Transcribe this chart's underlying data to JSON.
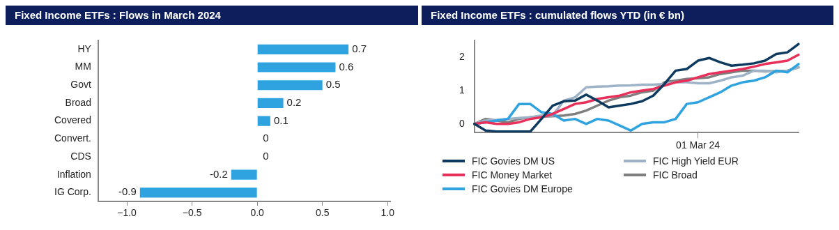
{
  "chart_data": [
    {
      "type": "bar",
      "orientation": "horizontal",
      "title": "Fixed Income ETFs : Flows in March 2024",
      "categories": [
        "HY",
        "MM",
        "Govt",
        "Broad",
        "Covered",
        "Convert.",
        "CDS",
        "Inflation",
        "IG Corp."
      ],
      "values": [
        0.7,
        0.6,
        0.5,
        0.2,
        0.1,
        0,
        0,
        -0.2,
        -0.9
      ],
      "color": "#2ea3e0",
      "xlim": [
        -1.22,
        1.02
      ],
      "xticks": [
        {
          "value": -1,
          "label": "−1.0"
        },
        {
          "value": -0.5,
          "label": "−0.5"
        },
        {
          "value": 0,
          "label": "0.0"
        },
        {
          "value": 0.5,
          "label": "0.5"
        },
        {
          "value": 1,
          "label": "1.0"
        }
      ],
      "data_labels": true
    },
    {
      "type": "line",
      "title": "Fixed Income ETFs : cumulated flows YTD (in € bn)",
      "categories": [
        null,
        null,
        null,
        null,
        null,
        null,
        null,
        null,
        null,
        null,
        null,
        null,
        null,
        null,
        null,
        null,
        null,
        null,
        null,
        null,
        "01 Mar 24",
        null,
        null,
        null,
        null,
        null,
        null,
        null,
        null,
        null
      ],
      "series": [
        {
          "name": "FIC Govies DM US",
          "color": "#0f3a60",
          "values": [
            0,
            -0.2,
            -0.23,
            -0.23,
            -0.23,
            -0.23,
            0.15,
            0.55,
            0.68,
            0.7,
            0.88,
            0.7,
            0.5,
            0.55,
            0.6,
            0.68,
            0.85,
            1.2,
            1.6,
            1.65,
            1.9,
            1.98,
            1.85,
            1.75,
            1.78,
            1.82,
            1.9,
            2.1,
            2.15,
            2.4
          ]
        },
        {
          "name": "FIC Money Market",
          "color": "#e8305a",
          "values": [
            0,
            0.05,
            0,
            0,
            0.05,
            0.15,
            0.2,
            0.3,
            0.45,
            0.6,
            0.65,
            0.75,
            0.8,
            0.85,
            0.95,
            1,
            1.05,
            1.15,
            1.25,
            1.3,
            1.4,
            1.5,
            1.55,
            1.6,
            1.65,
            1.72,
            1.8,
            1.85,
            1.9,
            2.08
          ]
        },
        {
          "name": "FIC Govies DM Europe",
          "color": "#2ea3e0",
          "values": [
            0,
            0.05,
            0.1,
            0.15,
            0.6,
            0.6,
            0.35,
            0.3,
            0.1,
            0.15,
            0,
            0.15,
            0.1,
            -0.05,
            -0.2,
            0,
            0.05,
            0.05,
            0.15,
            0.6,
            0.65,
            0.8,
            0.95,
            1.15,
            1.25,
            1.3,
            1.4,
            1.6,
            1.55,
            1.8
          ]
        },
        {
          "name": "FIC High Yield EUR",
          "color": "#9fb3c8",
          "values": [
            0,
            0.1,
            0.12,
            0.15,
            0.18,
            0.2,
            0.25,
            0.25,
            0.7,
            0.8,
            1.1,
            1.12,
            1.13,
            1.15,
            1.16,
            1.18,
            1.18,
            1.2,
            1.25,
            1.25,
            1.22,
            1.22,
            1.3,
            1.4,
            1.45,
            1.6,
            1.6,
            1.55,
            1.6,
            1.7
          ]
        },
        {
          "name": "FIC Broad",
          "color": "#7f7f7f",
          "values": [
            0,
            0.15,
            0.1,
            0.05,
            0.15,
            0.2,
            0.22,
            0.23,
            0.25,
            0.3,
            0.4,
            0.55,
            0.7,
            0.8,
            0.85,
            0.95,
            1,
            1.25,
            1.3,
            1.35,
            1.37,
            1.4,
            1.5,
            1.55,
            1.6,
            1.6,
            1.58,
            1.58,
            1.6,
            1.7
          ]
        }
      ],
      "ylim": [
        -0.26,
        2.5
      ],
      "yticks": [
        0,
        1,
        2
      ],
      "legend": "bottom"
    }
  ]
}
